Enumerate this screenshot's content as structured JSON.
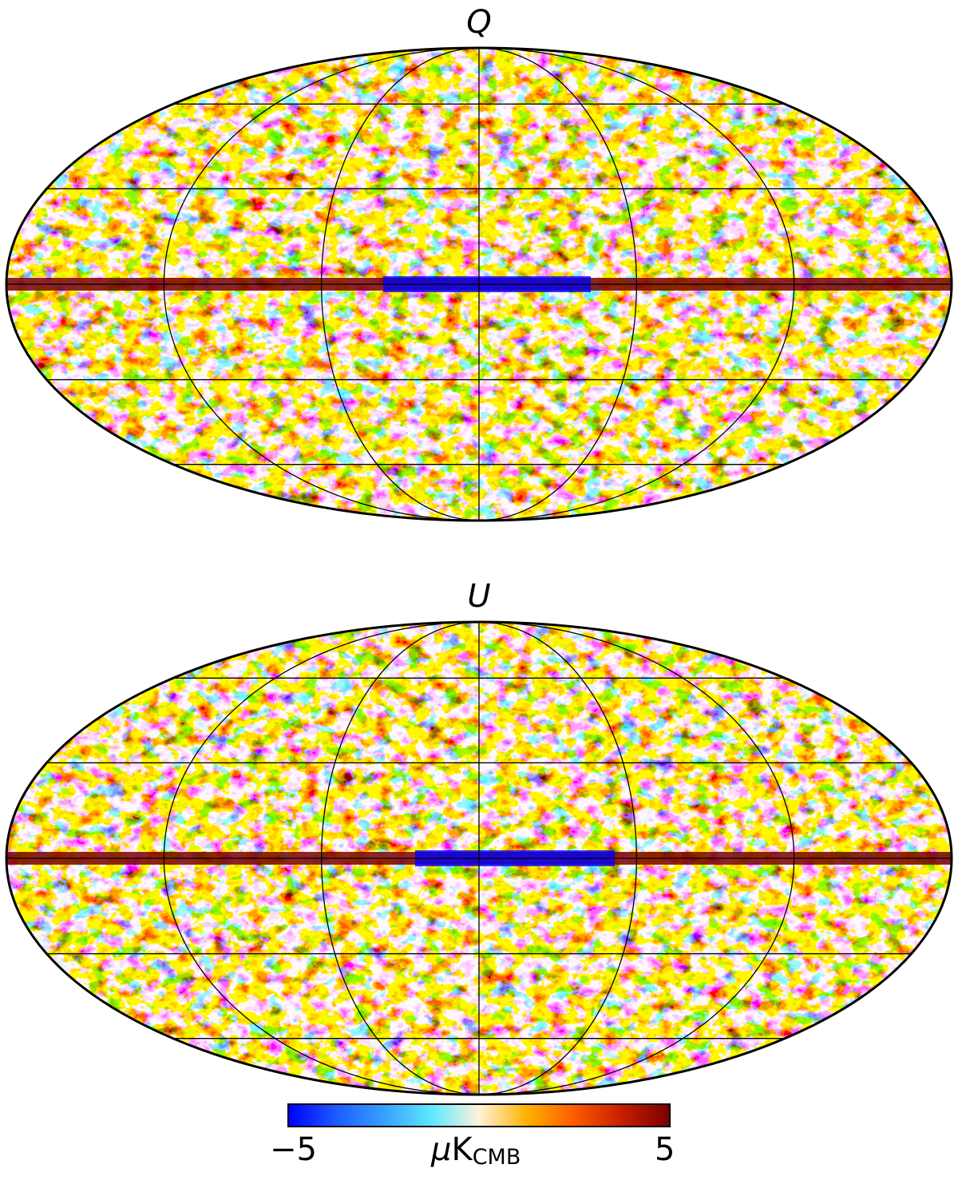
{
  "maps": [
    {
      "id": "q",
      "title": "Q"
    },
    {
      "id": "u",
      "title": "U"
    }
  ],
  "projection": "mollweide",
  "graticule": true,
  "colorbar": {
    "min_label": "−5",
    "max_label": "5",
    "min": -5,
    "max": 5,
    "unit_prefix": "μ",
    "unit_main": "K",
    "unit_sub": "CMB",
    "colormap": [
      "#0000ff",
      "#1e5cff",
      "#37a0ff",
      "#5ee8ff",
      "#fff2dc",
      "#ffb300",
      "#ff5a00",
      "#c81e00",
      "#7a0000"
    ]
  }
}
